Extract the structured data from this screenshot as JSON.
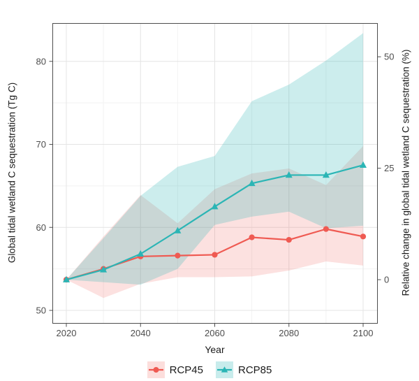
{
  "figure": {
    "x_axis": {
      "title": "Year",
      "ticks": [
        {
          "label": "2020",
          "value": 2020
        },
        {
          "label": "2040",
          "value": 2040
        },
        {
          "label": "2060",
          "value": 2060
        },
        {
          "label": "2080",
          "value": 2080
        },
        {
          "label": "2100",
          "value": 2100
        }
      ],
      "minor_ticks": [
        2030,
        2050,
        2070,
        2090
      ]
    },
    "y_left": {
      "title": "Global tidal wetland C sequestration (Tg C)",
      "ticks": [
        {
          "label": "50",
          "value": 50
        },
        {
          "label": "60",
          "value": 60
        },
        {
          "label": "70",
          "value": 70
        },
        {
          "label": "80",
          "value": 80
        }
      ],
      "minor_ticks": [
        55,
        65,
        75
      ]
    },
    "y_right": {
      "title": "Relative change in global tidal wetland C sequestration (%)",
      "ticks": [
        {
          "label": "0",
          "pct": 0
        },
        {
          "label": "25",
          "pct": 25
        },
        {
          "label": "50",
          "pct": 50
        }
      ]
    },
    "colors": {
      "rcp45": "#EF5A52",
      "rcp85": "#2BB5B5",
      "grid_major": "#E4E4E4",
      "grid_minor": "#F2F2F2",
      "panel_border": "#4D4D4D",
      "tick_text": "#4D4D4D"
    }
  },
  "chart_data": {
    "type": "line",
    "title": "",
    "xlabel": "Year",
    "ylabel_left": "Global tidal wetland C sequestration (Tg C)",
    "ylabel_right": "Relative change in global tidal wetland C sequestration (%)",
    "x": [
      2020,
      2030,
      2040,
      2050,
      2060,
      2070,
      2080,
      2090,
      2100
    ],
    "x_range_shown": [
      2012,
      2108
    ],
    "y_left_range_shown": [
      48.5,
      84.6
    ],
    "y_right_range_shown_pct": [
      -10,
      57
    ],
    "right_axis_baseline_value": 53.7,
    "grid": "on",
    "legend_position": "bottom",
    "series": [
      {
        "name": "RCP45",
        "color": "#EF5A52",
        "marker": "circle",
        "band_opacity": 0.18,
        "mean": [
          53.7,
          55.0,
          56.5,
          56.6,
          56.7,
          58.8,
          58.5,
          59.8,
          58.9
        ],
        "lower": [
          53.7,
          51.5,
          53.2,
          54.0,
          54.0,
          54.1,
          54.8,
          55.9,
          55.4
        ],
        "upper": [
          53.7,
          58.9,
          63.9,
          60.5,
          64.6,
          66.5,
          67.1,
          65.1,
          69.8
        ]
      },
      {
        "name": "RCP85",
        "color": "#2BB5B5",
        "marker": "triangle",
        "band_opacity": 0.24,
        "mean": [
          53.7,
          54.9,
          56.8,
          59.6,
          62.5,
          65.3,
          66.3,
          66.3,
          67.5
        ],
        "lower": [
          53.7,
          53.4,
          53.1,
          55.0,
          60.3,
          61.3,
          61.9,
          59.9,
          60.2
        ],
        "upper": [
          53.7,
          58.7,
          63.8,
          67.3,
          68.6,
          75.2,
          77.2,
          80.1,
          83.4
        ]
      }
    ]
  }
}
